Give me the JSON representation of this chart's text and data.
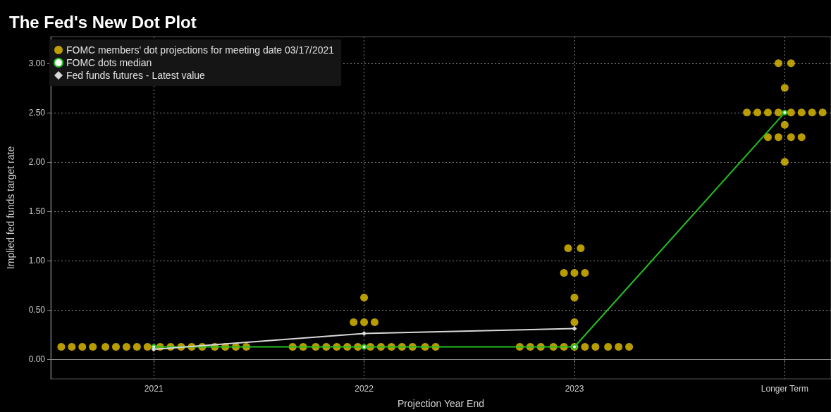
{
  "chart_data": {
    "type": "scatter",
    "title": "The Fed's New Dot Plot",
    "xlabel": "Projection Year End",
    "ylabel": "Implied fed funds target rate",
    "xlim": [
      2020.51,
      2024.22
    ],
    "xticks": [
      2021,
      2022,
      2023,
      {
        "value": 2024,
        "label": "Longer Term"
      }
    ],
    "ylim": [
      -0.2,
      3.27
    ],
    "yticks": [
      {
        "value": 0,
        "label": "0.00"
      },
      {
        "value": 0.5,
        "label": "0.50"
      },
      {
        "value": 1,
        "label": "1.00"
      },
      {
        "value": 1.5,
        "label": "1.50"
      },
      {
        "value": 2,
        "label": "2.00"
      },
      {
        "value": 2.5,
        "label": "2.50"
      },
      {
        "value": 3,
        "label": "3.00"
      }
    ],
    "grid": true,
    "legend": "top left",
    "series": [
      {
        "name": "FOMC members' dot projections for meeting date 03/17/2021",
        "marker": "circle",
        "color": "#e6c200",
        "x": [
          2020.56,
          2020.61,
          2020.66,
          2020.71,
          2020.77,
          2020.82,
          2020.87,
          2020.92,
          2020.97,
          2021.03,
          2021.08,
          2021.13,
          2021.18,
          2021.23,
          2021.29,
          2021.34,
          2021.39,
          2021.44,
          2021.66,
          2021.71,
          2021.77,
          2021.82,
          2021.87,
          2021.92,
          2021.97,
          2022.03,
          2022.08,
          2022.13,
          2022.18,
          2022.23,
          2022.29,
          2022.34,
          2021.95,
          2022,
          2022.05,
          2022,
          2022.74,
          2022.79,
          2022.84,
          2022.9,
          2022.95,
          2023,
          2023.05,
          2023.1,
          2023.16,
          2023.21,
          2023.26,
          2022.97,
          2023.03,
          2022.95,
          2023,
          2023.05,
          2023,
          2023,
          2023.97,
          2024.03,
          2024,
          2023.82,
          2023.87,
          2023.92,
          2023.97,
          2024.03,
          2024.08,
          2024.13,
          2024.18,
          2024,
          2023.92,
          2023.97,
          2024.03,
          2024.08,
          2024
        ],
        "values": [
          0.125,
          0.125,
          0.125,
          0.125,
          0.125,
          0.125,
          0.125,
          0.125,
          0.125,
          0.125,
          0.125,
          0.125,
          0.125,
          0.125,
          0.125,
          0.125,
          0.125,
          0.125,
          0.125,
          0.125,
          0.125,
          0.125,
          0.125,
          0.125,
          0.125,
          0.125,
          0.125,
          0.125,
          0.125,
          0.125,
          0.125,
          0.125,
          0.375,
          0.375,
          0.375,
          0.625,
          0.125,
          0.125,
          0.125,
          0.125,
          0.125,
          0.125,
          0.125,
          0.125,
          0.125,
          0.125,
          0.125,
          1.125,
          1.125,
          0.875,
          0.875,
          0.875,
          0.625,
          0.375,
          3,
          3,
          2.75,
          2.5,
          2.5,
          2.5,
          2.5,
          2.5,
          2.5,
          2.5,
          2.5,
          2.375,
          2.25,
          2.25,
          2.25,
          2.25,
          2
        ]
      },
      {
        "name": "FOMC dots median",
        "type": "line",
        "marker": "circle",
        "color": "#22c022",
        "x": [
          2021,
          2022,
          2023,
          2024
        ],
        "values": [
          0.125,
          0.125,
          0.125,
          2.5
        ]
      },
      {
        "name": "Fed funds futures - Latest value",
        "type": "line",
        "marker": "diamond",
        "color": "#d8d8d8",
        "x": [
          2021,
          2022,
          2023
        ],
        "values": [
          0.1,
          0.26,
          0.31
        ]
      }
    ]
  }
}
